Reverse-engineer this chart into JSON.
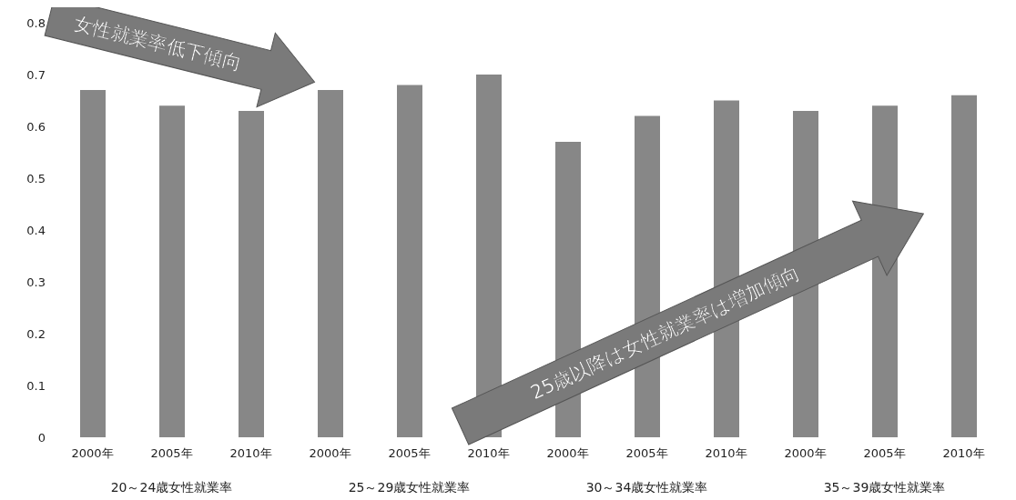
{
  "chart_data": {
    "type": "bar",
    "categories": [
      "2000年",
      "2005年",
      "2010年",
      "2000年",
      "2005年",
      "2010年",
      "2000年",
      "2005年",
      "2010年",
      "2000年",
      "2005年",
      "2010年"
    ],
    "values": [
      0.67,
      0.64,
      0.63,
      0.67,
      0.68,
      0.7,
      0.57,
      0.62,
      0.65,
      0.63,
      0.64,
      0.66
    ],
    "color": "#878787",
    "ylim": [
      0,
      0.8
    ],
    "yticks": [
      0,
      0.1,
      0.2,
      0.3,
      0.4,
      0.5,
      0.6,
      0.7,
      0.8
    ],
    "grid": false,
    "legend": false,
    "annotations": [
      "女性就業率低下傾向",
      "25歳以降は女性就業率は増加傾向",
      "20～24歳女性就業率",
      "25～29歳女性就業率",
      "30～34歳女性就業率",
      "35～39歳女性就業率"
    ]
  }
}
